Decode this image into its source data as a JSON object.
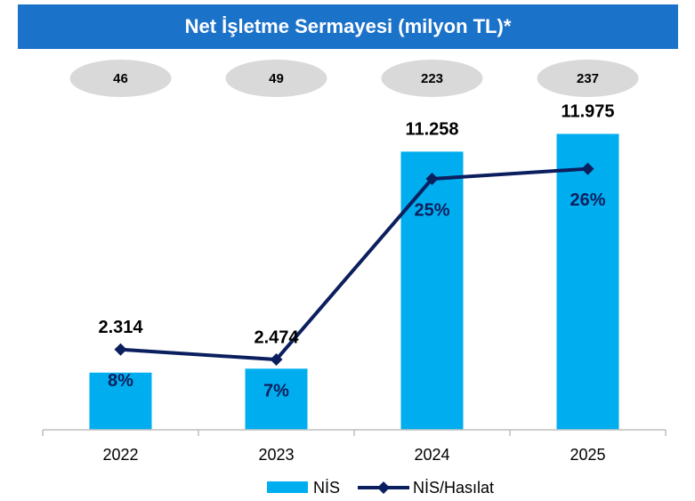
{
  "chart_data": {
    "type": "bar",
    "title": "Net İşletme Sermayesi (milyon TL)*",
    "categories": [
      "2022",
      "2023",
      "2024",
      "2025"
    ],
    "badges": [
      46,
      49,
      223,
      237
    ],
    "series": [
      {
        "name": "NİS",
        "type": "bar",
        "color": "#00aeef",
        "values": [
          2314,
          2474,
          11258,
          11975
        ],
        "value_labels": [
          "2.314",
          "2.474",
          "11.258",
          "11.975"
        ]
      },
      {
        "name": "NİS/Hasılat",
        "type": "line",
        "axis": "y2",
        "color": "#0b1f5e",
        "values": [
          8,
          7,
          25,
          26
        ],
        "value_labels": [
          "8%",
          "7%",
          "25%",
          "26%"
        ]
      }
    ],
    "ylim": [
      0,
      13000
    ],
    "y2lim": [
      0,
      32
    ],
    "legend": "bottom"
  }
}
